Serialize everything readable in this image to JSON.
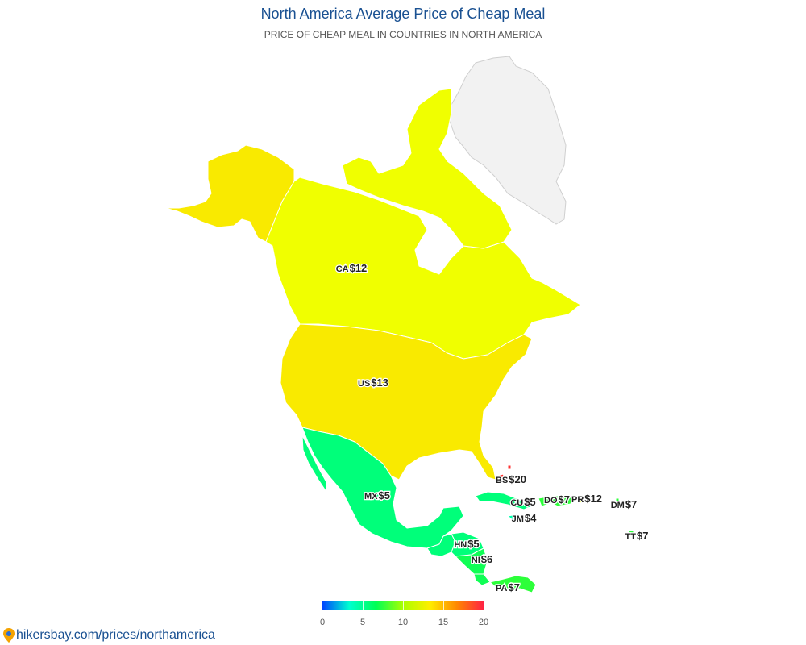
{
  "title": "North America Average Price of Cheap Meal",
  "subtitle": "PRICE OF CHEAP MEAL IN COUNTRIES IN NORTH AMERICA",
  "footer": {
    "link_text": "hikersbay.com/prices/northamerica",
    "icon": "location-pin-icon"
  },
  "chart_data": {
    "type": "choropleth",
    "region": "North America",
    "value_unit": "USD",
    "color_scale": {
      "min": 0,
      "max": 20,
      "ticks": [
        "0",
        "5",
        "10",
        "15",
        "20"
      ],
      "colors": [
        "#0044ff",
        "#00ffd0",
        "#00ff55",
        "#aaff00",
        "#ffee00",
        "#ff8800",
        "#ff2244"
      ]
    },
    "countries": [
      {
        "code": "CA",
        "price_text": "$12",
        "value": 12,
        "color": "#f0ff00"
      },
      {
        "code": "US",
        "price_text": "$13",
        "value": 13,
        "color": "#f9ea00"
      },
      {
        "code": "MX",
        "price_text": "$5",
        "value": 5,
        "color": "#00ff7a"
      },
      {
        "code": "BS",
        "price_text": "$20",
        "value": 20,
        "color": "#ff3030"
      },
      {
        "code": "CU",
        "price_text": "$5",
        "value": 5,
        "color": "#00ff7a"
      },
      {
        "code": "DO",
        "price_text": "$7",
        "value": 7,
        "color": "#2cff3a"
      },
      {
        "code": "PR",
        "price_text": "$12",
        "value": 12,
        "color": "#f0ff00"
      },
      {
        "code": "DM",
        "price_text": "$7",
        "value": 7,
        "color": "#2cff3a"
      },
      {
        "code": "JM",
        "price_text": "$4",
        "value": 4,
        "color": "#00ffae"
      },
      {
        "code": "HN",
        "price_text": "$5",
        "value": 5,
        "color": "#00ff7a"
      },
      {
        "code": "NI",
        "price_text": "$6",
        "value": 6,
        "color": "#10ff55"
      },
      {
        "code": "TT",
        "price_text": "$7",
        "value": 7,
        "color": "#2cff3a"
      },
      {
        "code": "PA",
        "price_text": "$7",
        "value": 7,
        "color": "#2cff3a"
      }
    ],
    "no_data_color": "#f2f2f2"
  }
}
